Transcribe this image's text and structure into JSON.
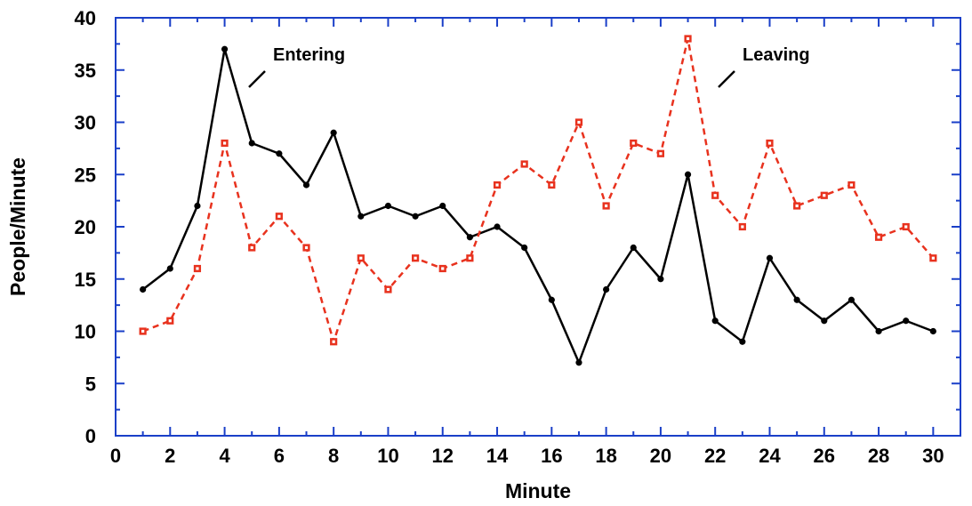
{
  "chart_data": {
    "type": "line",
    "title": "",
    "xlabel": "Minute",
    "ylabel": "People/Minute",
    "xlim": [
      0,
      31
    ],
    "ylim": [
      0,
      40
    ],
    "x_ticks": [
      0,
      2,
      4,
      6,
      8,
      10,
      12,
      14,
      16,
      18,
      20,
      22,
      24,
      26,
      28,
      30
    ],
    "y_ticks": [
      0,
      5,
      10,
      15,
      20,
      25,
      30,
      35,
      40
    ],
    "grid": false,
    "frame_color": "#1a3fc8",
    "x": [
      1,
      2,
      3,
      4,
      5,
      6,
      7,
      8,
      9,
      10,
      11,
      12,
      13,
      14,
      15,
      16,
      17,
      18,
      19,
      20,
      21,
      22,
      23,
      24,
      25,
      26,
      27,
      28,
      29,
      30
    ],
    "series": [
      {
        "name": "Entering",
        "color": "#000000",
        "line_style": "solid",
        "marker": "filled-circle",
        "values": [
          14,
          16,
          22,
          37,
          28,
          27,
          24,
          29,
          21,
          22,
          21,
          22,
          19,
          20,
          18,
          13,
          7,
          14,
          18,
          15,
          25,
          11,
          9,
          17,
          13,
          11,
          13,
          10,
          11,
          10
        ]
      },
      {
        "name": "Leaving",
        "color": "#e8321e",
        "line_style": "dashed",
        "marker": "square",
        "values": [
          10,
          11,
          16,
          28,
          18,
          21,
          18,
          9,
          17,
          14,
          17,
          16,
          17,
          24,
          26,
          24,
          30,
          22,
          28,
          27,
          38,
          23,
          20,
          28,
          22,
          23,
          24,
          19,
          20,
          17
        ]
      }
    ],
    "annotations": [
      {
        "text": "Entering",
        "series": 0,
        "near_x": 4.8,
        "near_y": 37
      },
      {
        "text": "Leaving",
        "series": 1,
        "near_x": 21.8,
        "near_y": 37
      }
    ]
  }
}
